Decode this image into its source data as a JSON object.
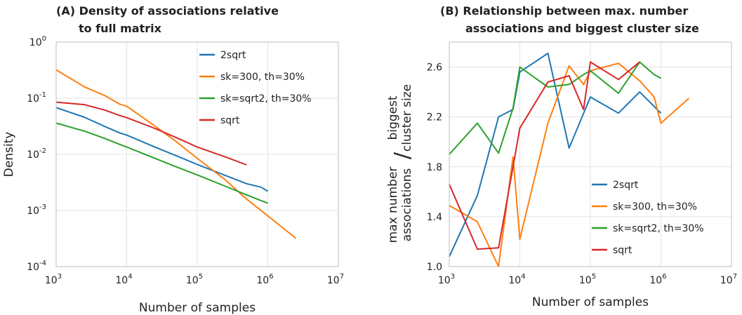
{
  "chart_data": [
    {
      "type": "line",
      "title_lines": [
        "(A) Density of associations relative",
        "to full matrix"
      ],
      "xlabel": "Number of samples",
      "ylabel": "Density",
      "xscale": "log",
      "yscale": "log",
      "xlim": [
        1000,
        10000000
      ],
      "ylim": [
        0.0001,
        1
      ],
      "grid": true,
      "legend_position": "top-right",
      "x_ticks": [
        {
          "base": "10",
          "exp": "3"
        },
        {
          "base": "10",
          "exp": "4"
        },
        {
          "base": "10",
          "exp": "5"
        },
        {
          "base": "10",
          "exp": "6"
        },
        {
          "base": "10",
          "exp": "7"
        }
      ],
      "y_ticks": [
        {
          "base": "10",
          "exp": "-4"
        },
        {
          "base": "10",
          "exp": "-3"
        },
        {
          "base": "10",
          "exp": "-2"
        },
        {
          "base": "10",
          "exp": "-1"
        },
        {
          "base": "10",
          "exp": "0"
        }
      ],
      "series": [
        {
          "name": "2sqrt",
          "color": "#1f77b4",
          "x": [
            1000,
            2500,
            5000,
            8000,
            10000,
            25000,
            50000,
            100000,
            250000,
            500000,
            800000,
            1000000
          ],
          "y": [
            0.068,
            0.046,
            0.031,
            0.024,
            0.022,
            0.0135,
            0.0095,
            0.0066,
            0.0042,
            0.003,
            0.0026,
            0.0022
          ]
        },
        {
          "name": "sk=300, th=30%",
          "color": "#ff7f0e",
          "x": [
            1000,
            2500,
            5000,
            8000,
            10000,
            25000,
            50000,
            100000,
            250000,
            500000,
            1000000,
            2500000
          ],
          "y": [
            0.32,
            0.16,
            0.11,
            0.078,
            0.072,
            0.032,
            0.017,
            0.0085,
            0.0035,
            0.0016,
            0.0008,
            0.00032
          ]
        },
        {
          "name": "sk=sqrt2, th=30%",
          "color": "#2ca02c",
          "x": [
            1000,
            2500,
            5000,
            8000,
            10000,
            25000,
            50000,
            100000,
            250000,
            500000,
            800000,
            1000000
          ],
          "y": [
            0.036,
            0.026,
            0.019,
            0.015,
            0.0135,
            0.0085,
            0.006,
            0.0043,
            0.0027,
            0.0019,
            0.0015,
            0.00135
          ]
        },
        {
          "name": "sqrt",
          "color": "#d62728",
          "x": [
            1000,
            2500,
            5000,
            8000,
            10000,
            25000,
            50000,
            100000,
            250000,
            500000
          ],
          "y": [
            0.085,
            0.077,
            0.061,
            0.049,
            0.045,
            0.029,
            0.02,
            0.0135,
            0.009,
            0.0065
          ]
        }
      ]
    },
    {
      "type": "line",
      "title_lines": [
        "(B) Relationship between max. number",
        "associations and biggest cluster size"
      ],
      "xlabel": "Number of samples",
      "ylabel_left_lines": [
        "max number",
        "associations"
      ],
      "ylabel_right_lines": [
        "biggest",
        "cluster size"
      ],
      "ylabel_separator": "/",
      "xscale": "log",
      "yscale": "linear",
      "xlim": [
        1000,
        10000000
      ],
      "ylim": [
        1.0,
        2.8
      ],
      "grid": true,
      "legend_position": "lower-right",
      "x_ticks": [
        {
          "base": "10",
          "exp": "3"
        },
        {
          "base": "10",
          "exp": "4"
        },
        {
          "base": "10",
          "exp": "5"
        },
        {
          "base": "10",
          "exp": "6"
        },
        {
          "base": "10",
          "exp": "7"
        }
      ],
      "y_ticks": [
        "1.0",
        "1.4",
        "1.8",
        "2.2",
        "2.6"
      ],
      "series": [
        {
          "name": "2sqrt",
          "color": "#1f77b4",
          "x": [
            1000,
            2500,
            5000,
            8000,
            10000,
            25000,
            50000,
            100000,
            250000,
            500000,
            1000000
          ],
          "y": [
            1.08,
            1.57,
            2.2,
            2.26,
            2.56,
            2.71,
            1.95,
            2.36,
            2.23,
            2.4,
            2.23
          ]
        },
        {
          "name": "sk=300, th=30%",
          "color": "#ff7f0e",
          "x": [
            1000,
            2500,
            5000,
            8000,
            10000,
            25000,
            50000,
            80000,
            100000,
            250000,
            500000,
            800000,
            1000000,
            2500000
          ],
          "y": [
            1.49,
            1.36,
            1.0,
            1.88,
            1.22,
            2.15,
            2.61,
            2.46,
            2.57,
            2.63,
            2.49,
            2.36,
            2.15,
            2.35
          ]
        },
        {
          "name": "sk=sqrt2, th=30%",
          "color": "#2ca02c",
          "x": [
            1000,
            2500,
            5000,
            8000,
            10000,
            25000,
            50000,
            80000,
            100000,
            250000,
            500000,
            800000,
            1000000
          ],
          "y": [
            1.9,
            2.15,
            1.91,
            2.27,
            2.6,
            2.44,
            2.46,
            2.54,
            2.57,
            2.39,
            2.64,
            2.54,
            2.51
          ]
        },
        {
          "name": "sqrt",
          "color": "#d62728",
          "x": [
            1000,
            2500,
            5000,
            8000,
            10000,
            25000,
            50000,
            80000,
            100000,
            250000,
            500000
          ],
          "y": [
            1.66,
            1.14,
            1.15,
            1.8,
            2.11,
            2.48,
            2.53,
            2.26,
            2.64,
            2.5,
            2.64
          ]
        }
      ]
    }
  ]
}
